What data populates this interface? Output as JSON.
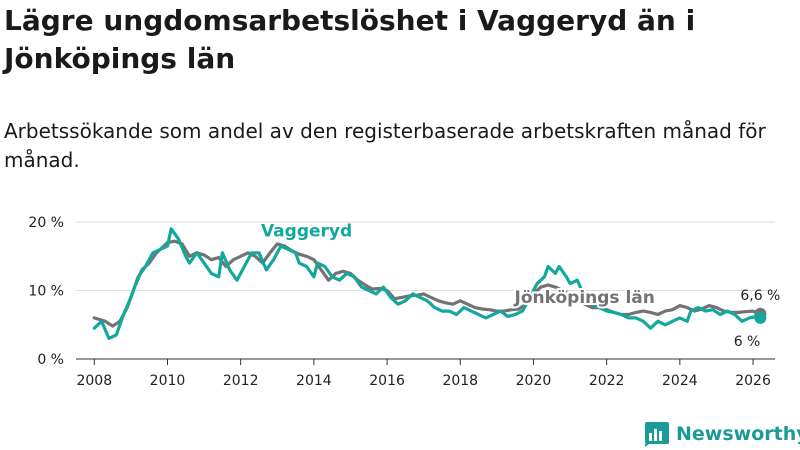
{
  "title": "Lägre ungdomsarbetslöshet i Vaggeryd än i Jönköpings län",
  "subtitle": "Arbetssökande som andel av den registerbaserade arbetskraften månad för månad.",
  "brand": "Newsworthy",
  "colors": {
    "vaggeryd": "#13a89e",
    "lan": "#737373",
    "grid": "#dddddd",
    "text": "#222222",
    "brand": "#1a9b98"
  },
  "chart_data": {
    "type": "line",
    "title": "Lägre ungdomsarbetslöshet i Vaggeryd än i Jönköpings län",
    "xlabel": "",
    "ylabel": "",
    "xlim": [
      2007.5,
      2026.6
    ],
    "ylim": [
      0,
      20
    ],
    "x_ticks": [
      {
        "value": 2008,
        "label": "2008"
      },
      {
        "value": 2010,
        "label": "2010"
      },
      {
        "value": 2012,
        "label": "2012"
      },
      {
        "value": 2014,
        "label": "2014"
      },
      {
        "value": 2016,
        "label": "2016"
      },
      {
        "value": 2018,
        "label": "2018"
      },
      {
        "value": 2020,
        "label": "2020"
      },
      {
        "value": 2022,
        "label": "2022"
      },
      {
        "value": 2024,
        "label": "2024"
      },
      {
        "value": 2026,
        "label": "2026"
      }
    ],
    "y_ticks": [
      {
        "value": 0,
        "label": "0 %"
      },
      {
        "value": 10,
        "label": "10 %"
      },
      {
        "value": 20,
        "label": "20 %"
      }
    ],
    "series": [
      {
        "name": "Jönköpings län",
        "label": "Jönköpings län",
        "end_label": "6,6 %",
        "end_value": 6.6,
        "points": [
          [
            2008.0,
            6.0
          ],
          [
            2008.3,
            5.5
          ],
          [
            2008.5,
            4.8
          ],
          [
            2008.7,
            5.5
          ],
          [
            2008.9,
            7.5
          ],
          [
            2009.1,
            10.5
          ],
          [
            2009.3,
            13.0
          ],
          [
            2009.5,
            14.0
          ],
          [
            2009.7,
            15.5
          ],
          [
            2009.9,
            16.5
          ],
          [
            2010.0,
            17.0
          ],
          [
            2010.2,
            17.2
          ],
          [
            2010.4,
            16.8
          ],
          [
            2010.6,
            15.0
          ],
          [
            2010.8,
            15.5
          ],
          [
            2011.0,
            15.2
          ],
          [
            2011.2,
            14.5
          ],
          [
            2011.4,
            14.8
          ],
          [
            2011.6,
            13.5
          ],
          [
            2011.8,
            14.5
          ],
          [
            2012.0,
            15.0
          ],
          [
            2012.2,
            15.5
          ],
          [
            2012.4,
            15.0
          ],
          [
            2012.6,
            14.0
          ],
          [
            2012.8,
            15.5
          ],
          [
            2013.0,
            16.8
          ],
          [
            2013.2,
            16.5
          ],
          [
            2013.4,
            15.8
          ],
          [
            2013.6,
            15.3
          ],
          [
            2013.8,
            15.0
          ],
          [
            2014.0,
            14.5
          ],
          [
            2014.2,
            13.0
          ],
          [
            2014.4,
            11.5
          ],
          [
            2014.6,
            12.5
          ],
          [
            2014.8,
            12.8
          ],
          [
            2015.0,
            12.5
          ],
          [
            2015.2,
            11.5
          ],
          [
            2015.4,
            10.8
          ],
          [
            2015.6,
            10.2
          ],
          [
            2015.8,
            10.3
          ],
          [
            2016.0,
            10.0
          ],
          [
            2016.2,
            8.8
          ],
          [
            2016.4,
            9.0
          ],
          [
            2016.6,
            9.2
          ],
          [
            2016.8,
            9.3
          ],
          [
            2017.0,
            9.5
          ],
          [
            2017.2,
            9.0
          ],
          [
            2017.4,
            8.5
          ],
          [
            2017.6,
            8.2
          ],
          [
            2017.8,
            8.0
          ],
          [
            2018.0,
            8.5
          ],
          [
            2018.2,
            8.0
          ],
          [
            2018.4,
            7.5
          ],
          [
            2018.6,
            7.3
          ],
          [
            2018.8,
            7.2
          ],
          [
            2019.0,
            7.0
          ],
          [
            2019.2,
            7.0
          ],
          [
            2019.4,
            7.2
          ],
          [
            2019.6,
            7.3
          ],
          [
            2019.8,
            8.0
          ],
          [
            2020.0,
            9.5
          ],
          [
            2020.2,
            10.5
          ],
          [
            2020.4,
            10.8
          ],
          [
            2020.6,
            10.5
          ],
          [
            2020.8,
            10.0
          ],
          [
            2021.0,
            9.5
          ],
          [
            2021.2,
            8.8
          ],
          [
            2021.4,
            8.0
          ],
          [
            2021.6,
            7.5
          ],
          [
            2021.8,
            7.5
          ],
          [
            2022.0,
            7.2
          ],
          [
            2022.2,
            6.8
          ],
          [
            2022.4,
            6.5
          ],
          [
            2022.6,
            6.5
          ],
          [
            2022.8,
            6.8
          ],
          [
            2023.0,
            7.0
          ],
          [
            2023.2,
            6.8
          ],
          [
            2023.4,
            6.5
          ],
          [
            2023.6,
            7.0
          ],
          [
            2023.8,
            7.2
          ],
          [
            2024.0,
            7.8
          ],
          [
            2024.2,
            7.5
          ],
          [
            2024.4,
            7.0
          ],
          [
            2024.6,
            7.3
          ],
          [
            2024.8,
            7.8
          ],
          [
            2025.0,
            7.5
          ],
          [
            2025.2,
            7.0
          ],
          [
            2025.4,
            6.8
          ],
          [
            2025.6,
            6.8
          ],
          [
            2025.8,
            6.9
          ],
          [
            2026.0,
            7.0
          ],
          [
            2026.2,
            6.6
          ]
        ]
      },
      {
        "name": "Vaggeryd",
        "label": "Vaggeryd",
        "end_label": "6 %",
        "end_value": 6.0,
        "points": [
          [
            2008.0,
            4.5
          ],
          [
            2008.2,
            5.5
          ],
          [
            2008.4,
            3.0
          ],
          [
            2008.6,
            3.5
          ],
          [
            2008.8,
            6.5
          ],
          [
            2009.0,
            9.0
          ],
          [
            2009.2,
            12.0
          ],
          [
            2009.4,
            13.5
          ],
          [
            2009.6,
            15.5
          ],
          [
            2009.8,
            16.0
          ],
          [
            2010.0,
            16.5
          ],
          [
            2010.1,
            19.0
          ],
          [
            2010.3,
            17.5
          ],
          [
            2010.5,
            15.0
          ],
          [
            2010.6,
            14.0
          ],
          [
            2010.8,
            15.5
          ],
          [
            2011.0,
            14.0
          ],
          [
            2011.2,
            12.5
          ],
          [
            2011.4,
            12.0
          ],
          [
            2011.5,
            15.5
          ],
          [
            2011.7,
            13.0
          ],
          [
            2011.9,
            11.5
          ],
          [
            2012.1,
            13.5
          ],
          [
            2012.3,
            15.5
          ],
          [
            2012.5,
            15.5
          ],
          [
            2012.7,
            13.0
          ],
          [
            2012.9,
            14.5
          ],
          [
            2013.1,
            16.5
          ],
          [
            2013.3,
            16.0
          ],
          [
            2013.5,
            15.5
          ],
          [
            2013.6,
            14.0
          ],
          [
            2013.8,
            13.5
          ],
          [
            2014.0,
            12.0
          ],
          [
            2014.1,
            14.0
          ],
          [
            2014.3,
            13.5
          ],
          [
            2014.5,
            12.0
          ],
          [
            2014.7,
            11.5
          ],
          [
            2014.9,
            12.5
          ],
          [
            2015.1,
            12.0
          ],
          [
            2015.3,
            10.5
          ],
          [
            2015.5,
            10.0
          ],
          [
            2015.7,
            9.5
          ],
          [
            2015.9,
            10.5
          ],
          [
            2016.1,
            9.0
          ],
          [
            2016.3,
            8.0
          ],
          [
            2016.5,
            8.5
          ],
          [
            2016.7,
            9.5
          ],
          [
            2016.9,
            9.0
          ],
          [
            2017.1,
            8.5
          ],
          [
            2017.3,
            7.5
          ],
          [
            2017.5,
            7.0
          ],
          [
            2017.7,
            7.0
          ],
          [
            2017.9,
            6.5
          ],
          [
            2018.1,
            7.5
          ],
          [
            2018.3,
            7.0
          ],
          [
            2018.5,
            6.5
          ],
          [
            2018.7,
            6.0
          ],
          [
            2018.9,
            6.5
          ],
          [
            2019.1,
            7.0
          ],
          [
            2019.3,
            6.2
          ],
          [
            2019.5,
            6.5
          ],
          [
            2019.7,
            7.0
          ],
          [
            2019.9,
            9.0
          ],
          [
            2020.1,
            11.0
          ],
          [
            2020.3,
            12.0
          ],
          [
            2020.4,
            13.5
          ],
          [
            2020.6,
            12.5
          ],
          [
            2020.7,
            13.5
          ],
          [
            2020.9,
            12.0
          ],
          [
            2021.0,
            11.0
          ],
          [
            2021.2,
            11.5
          ],
          [
            2021.4,
            9.0
          ],
          [
            2021.6,
            8.0
          ],
          [
            2021.8,
            7.5
          ],
          [
            2022.0,
            7.0
          ],
          [
            2022.2,
            6.8
          ],
          [
            2022.4,
            6.5
          ],
          [
            2022.6,
            6.0
          ],
          [
            2022.8,
            6.0
          ],
          [
            2023.0,
            5.5
          ],
          [
            2023.2,
            4.5
          ],
          [
            2023.4,
            5.5
          ],
          [
            2023.6,
            5.0
          ],
          [
            2023.8,
            5.5
          ],
          [
            2024.0,
            6.0
          ],
          [
            2024.2,
            5.5
          ],
          [
            2024.3,
            7.0
          ],
          [
            2024.5,
            7.5
          ],
          [
            2024.7,
            7.0
          ],
          [
            2024.9,
            7.2
          ],
          [
            2025.1,
            6.5
          ],
          [
            2025.3,
            7.0
          ],
          [
            2025.5,
            6.5
          ],
          [
            2025.7,
            5.5
          ],
          [
            2025.9,
            6.0
          ],
          [
            2026.1,
            6.2
          ],
          [
            2026.2,
            6.0
          ]
        ]
      }
    ]
  }
}
